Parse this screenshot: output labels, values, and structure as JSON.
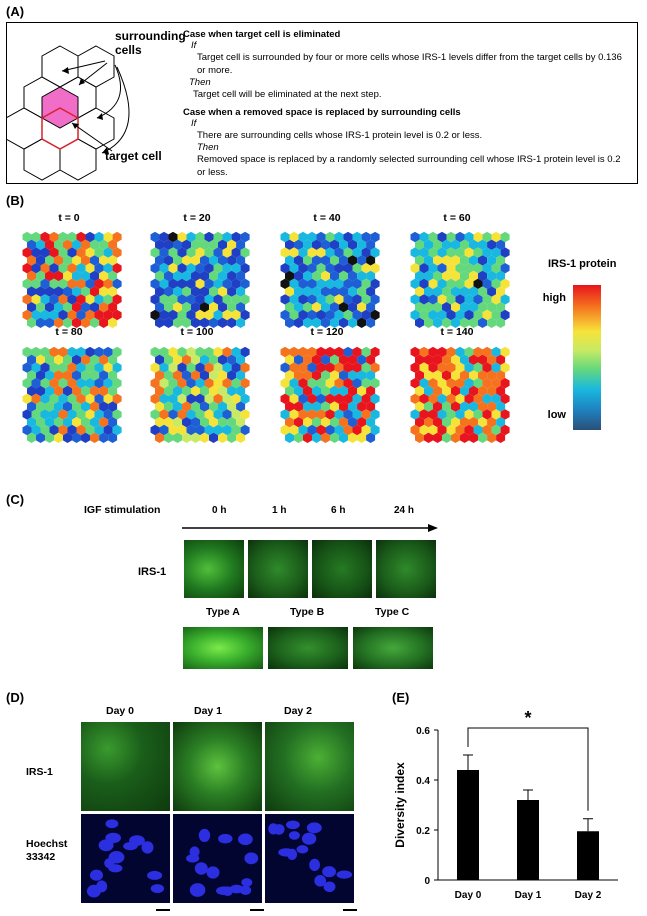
{
  "panels": {
    "a": "(A)",
    "b": "(B)",
    "c": "(C)",
    "d": "(D)",
    "e": "(E)"
  },
  "panel_a": {
    "label_surrounding": "surrounding cells",
    "label_target": "target cell",
    "case1_title": "Case when target cell is eliminated",
    "case1_if": "If",
    "case1_cond": "Target cell is surrounded by four or more cells whose IRS-1 levels differ from the target cells by 0.136 or more.",
    "case1_then": "Then",
    "case1_result": "Target cell will be eliminated at the next step.",
    "case2_title": "Case when a removed space is replaced by surrounding cells",
    "case2_if": "If",
    "case2_cond": "There are surrounding cells whose IRS-1 protein level is 0.2 or less.",
    "case2_then": "Then",
    "case2_result": "Removed space is replaced by a randomly selected surrounding cell whose IRS-1 protein level is 0.2 or less.",
    "colors": {
      "target_fill": "#f06ec8",
      "target_stroke": "#d9232d"
    }
  },
  "panel_b": {
    "time_labels": [
      "t = 0",
      "t = 20",
      "t = 40",
      "t = 60",
      "t = 80",
      "t = 100",
      "t = 120",
      "t = 140"
    ],
    "colorbar_title": "IRS-1 protein",
    "colorbar_high": "high",
    "colorbar_low": "low"
  },
  "panel_c": {
    "stimulation_label": "IGF stimulation",
    "time_points": [
      "0 h",
      "1 h",
      "6 h",
      "24 h"
    ],
    "row_label": "IRS-1",
    "types": [
      "Type A",
      "Type B",
      "Type C"
    ]
  },
  "panel_d": {
    "days": [
      "Day 0",
      "Day 1",
      "Day 2"
    ],
    "row1_label": "IRS-1",
    "row2_label": "Hoechst 33342"
  },
  "chart_data": {
    "type": "bar",
    "categories": [
      "Day 0",
      "Day 1",
      "Day 2"
    ],
    "values": [
      0.44,
      0.32,
      0.195
    ],
    "errors": [
      0.06,
      0.04,
      0.05
    ],
    "ylabel": "Diversity index",
    "ylim": [
      0,
      0.6
    ],
    "yticks": [
      "0",
      "0.2",
      "0.4",
      "0.6"
    ],
    "annotation": "*",
    "bar_color": "#000000"
  }
}
